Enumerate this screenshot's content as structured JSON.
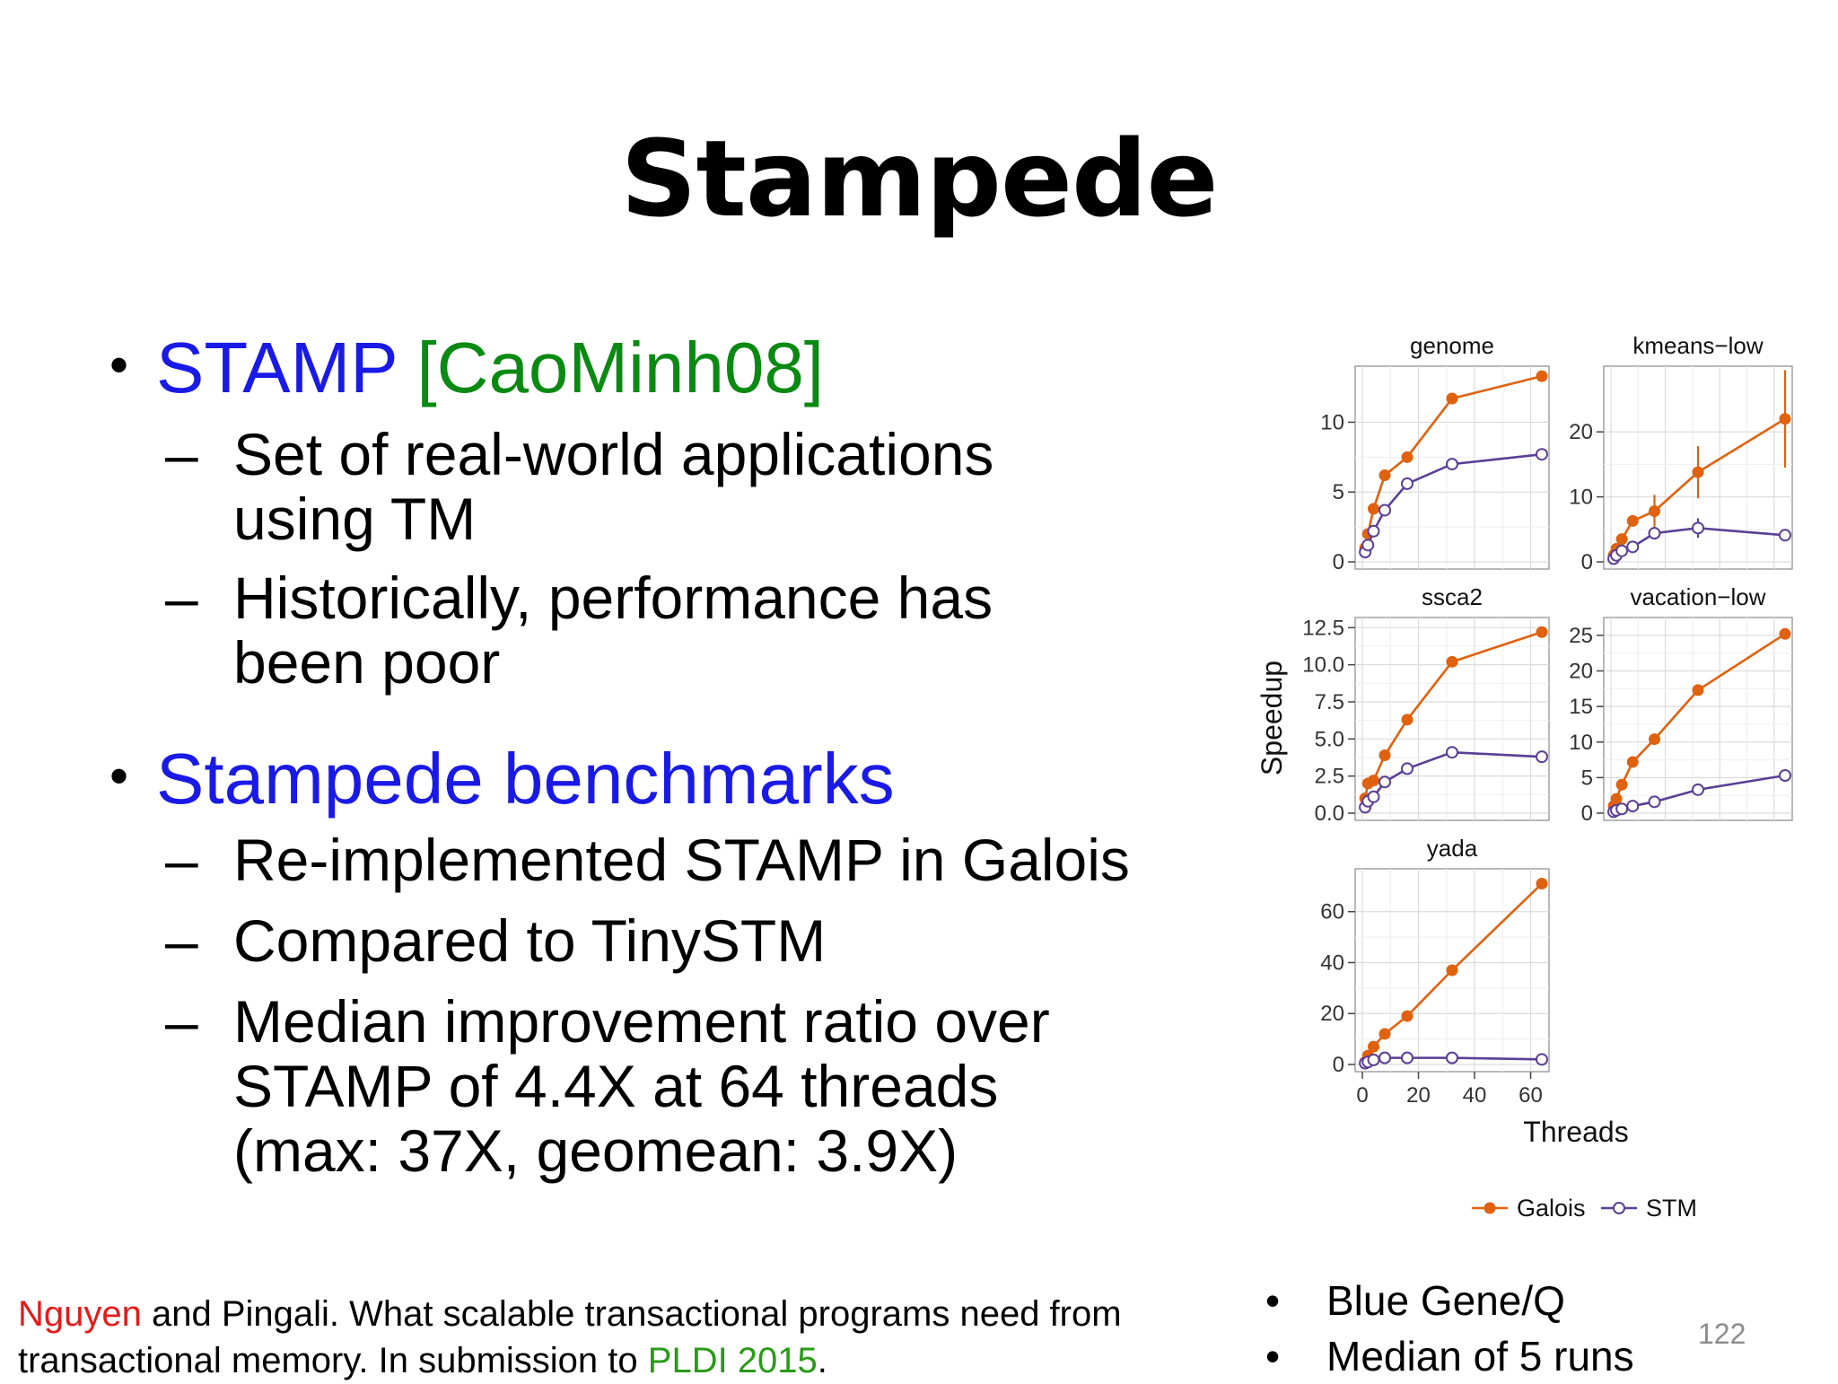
{
  "slide": {
    "title": "Stampede",
    "bullet1": {
      "main": "STAMP",
      "cite": "[CaoMinh08]"
    },
    "sub1a": "Set of real-world applications",
    "sub1a_cont": "using TM",
    "sub1b": "Historically, performance has",
    "sub1b_cont": "been poor",
    "bullet2": "Stampede benchmarks",
    "sub2a": "Re-implemented STAMP in Galois",
    "sub2b": "Compared to TinySTM",
    "sub2c_l1": "Median improvement ratio over",
    "sub2c_l2": "STAMP of 4.4X at 64 threads",
    "sub2c_l3": "(max: 37X, geomean: 3.9X)",
    "dash": "–",
    "bullet_char": "•",
    "footer": {
      "author1": "Nguyen",
      "line1_rest": " and Pingali. What scalable transactional  programs need from",
      "line2_start": "transactional memory.  In submission to ",
      "venue": "PLDI 2015",
      "line2_end": "."
    },
    "notes": [
      "Blue Gene/Q",
      "Median of 5 runs"
    ],
    "page_number": "122"
  },
  "chart_data": {
    "type": "line",
    "layout": "facet-grid",
    "xlabel": "Threads",
    "ylabel": "Speedup",
    "x": [
      1,
      2,
      4,
      8,
      16,
      32,
      64
    ],
    "xlim": [
      0,
      64
    ],
    "x_ticks": [
      "0",
      "20",
      "40",
      "60"
    ],
    "grid": true,
    "legend": {
      "position": "bottom",
      "entries": [
        "Galois",
        "STM"
      ]
    },
    "colors": {
      "Galois": "#e0610e",
      "STM": "#5b3f94"
    },
    "panels": [
      {
        "title": "genome",
        "ylim": [
          0,
          13.5
        ],
        "y_ticks": [
          {
            "value": 0,
            "label": "0"
          },
          {
            "value": 5,
            "label": "5"
          },
          {
            "value": 10,
            "label": "10"
          }
        ],
        "series": [
          {
            "name": "Galois",
            "values": [
              1.0,
              2.0,
              3.8,
              6.2,
              7.5,
              11.7,
              13.3
            ]
          },
          {
            "name": "STM",
            "values": [
              0.7,
              1.2,
              2.2,
              3.7,
              5.6,
              7.0,
              7.7
            ]
          }
        ]
      },
      {
        "title": "kmeans−low",
        "ylim": [
          0,
          29
        ],
        "y_ticks": [
          {
            "value": 0,
            "label": "0"
          },
          {
            "value": 10,
            "label": "10"
          },
          {
            "value": 20,
            "label": "20"
          }
        ],
        "series": [
          {
            "name": "Galois",
            "values": [
              1.0,
              2.0,
              3.5,
              6.3,
              7.8,
              13.8,
              22.0
            ],
            "error": [
              0,
              0,
              0,
              0.3,
              2.5,
              4.0,
              7.5
            ]
          },
          {
            "name": "STM",
            "values": [
              0.5,
              1.0,
              1.7,
              2.3,
              4.4,
              5.2,
              4.1
            ],
            "error": [
              0,
              0,
              0,
              0,
              0.5,
              1.5,
              0.5
            ]
          }
        ]
      },
      {
        "title": "ssca2",
        "ylim": [
          0,
          12.7
        ],
        "y_ticks": [
          {
            "value": 0,
            "label": "0.0"
          },
          {
            "value": 2.5,
            "label": "2.5"
          },
          {
            "value": 5,
            "label": "5.0"
          },
          {
            "value": 7.5,
            "label": "7.5"
          },
          {
            "value": 10,
            "label": "10.0"
          },
          {
            "value": 12.5,
            "label": "12.5"
          }
        ],
        "series": [
          {
            "name": "Galois",
            "values": [
              1.0,
              2.0,
              2.2,
              3.9,
              6.3,
              10.2,
              12.2
            ]
          },
          {
            "name": "STM",
            "values": [
              0.4,
              0.8,
              1.1,
              2.1,
              3.0,
              4.1,
              3.8
            ]
          }
        ]
      },
      {
        "title": "vacation−low",
        "ylim": [
          0,
          26.5
        ],
        "y_ticks": [
          {
            "value": 0,
            "label": "0"
          },
          {
            "value": 5,
            "label": "5"
          },
          {
            "value": 10,
            "label": "10"
          },
          {
            "value": 15,
            "label": "15"
          },
          {
            "value": 20,
            "label": "20"
          },
          {
            "value": 25,
            "label": "25"
          }
        ],
        "series": [
          {
            "name": "Galois",
            "values": [
              1.0,
              2.0,
              4.0,
              7.2,
              10.4,
              17.3,
              25.2
            ]
          },
          {
            "name": "STM",
            "values": [
              0.2,
              0.4,
              0.6,
              1.0,
              1.6,
              3.3,
              5.3
            ]
          }
        ]
      },
      {
        "title": "yada",
        "ylim": [
          0,
          74
        ],
        "y_ticks": [
          {
            "value": 0,
            "label": "0"
          },
          {
            "value": 20,
            "label": "20"
          },
          {
            "value": 40,
            "label": "40"
          },
          {
            "value": 60,
            "label": "60"
          }
        ],
        "series": [
          {
            "name": "Galois",
            "values": [
              1.0,
              3.5,
              7.0,
              12.0,
              19.0,
              37.0,
              71.0
            ]
          },
          {
            "name": "STM",
            "values": [
              0.5,
              1.0,
              1.8,
              2.6,
              2.6,
              2.6,
              2.0
            ]
          }
        ]
      }
    ]
  }
}
